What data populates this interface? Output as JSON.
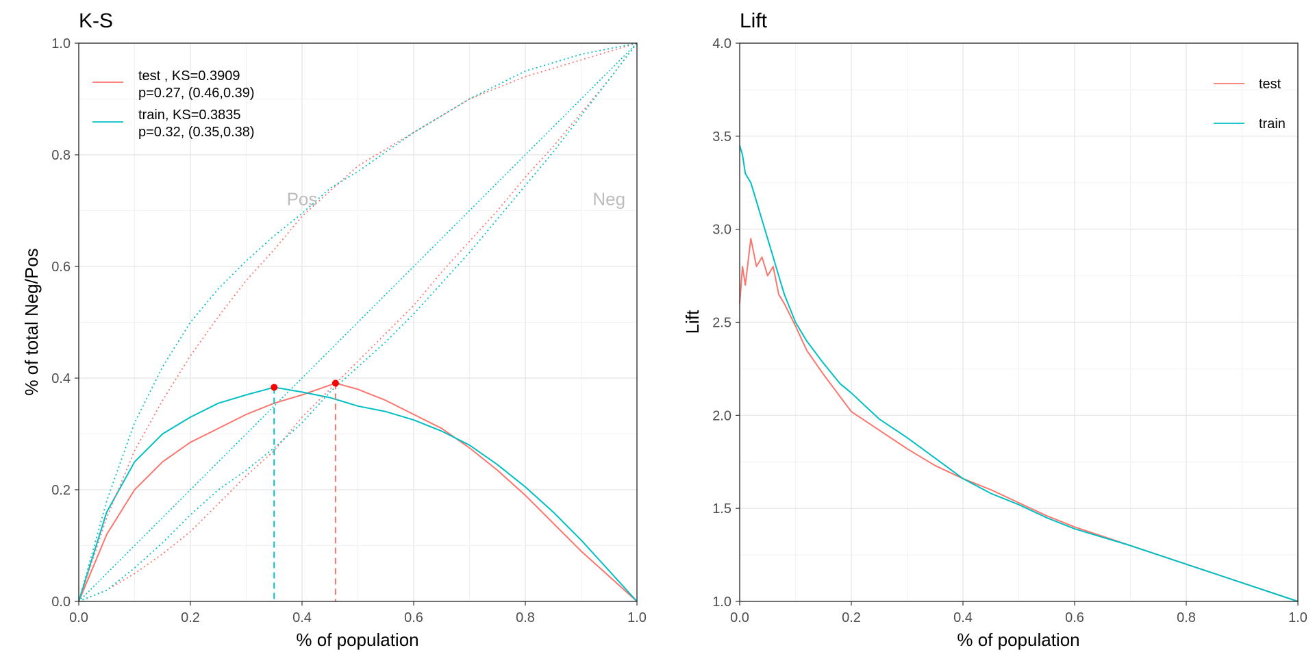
{
  "chart_data": [
    {
      "type": "line",
      "title": "K-S",
      "xlabel": "% of population",
      "ylabel": "% of total Neg/Pos",
      "xlim": [
        0,
        1
      ],
      "ylim": [
        0,
        1
      ],
      "xticks": [
        "0.0",
        "0.2",
        "0.4",
        "0.6",
        "0.8",
        "1.0"
      ],
      "yticks": [
        "0.0",
        "0.2",
        "0.4",
        "0.6",
        "0.8",
        "1.0"
      ],
      "grid": true,
      "legend_position": "top-left",
      "legend": [
        {
          "series": "test",
          "line1": "test , KS=0.3909",
          "line2": "p=0.27, (0.46,0.39)",
          "color": "#F8766D"
        },
        {
          "series": "train",
          "line1": "train, KS=0.3835",
          "line2": "p=0.32, (0.35,0.38)",
          "color": "#00BFC4"
        }
      ],
      "annotations": [
        {
          "text": "Pos",
          "x": 0.4,
          "y": 0.71
        },
        {
          "text": "Neg",
          "x": 0.95,
          "y": 0.71
        }
      ],
      "series": [
        {
          "name": "test",
          "kind": "ks",
          "color": "#F8766D",
          "x": [
            0,
            0.05,
            0.1,
            0.15,
            0.2,
            0.25,
            0.3,
            0.35,
            0.4,
            0.46,
            0.5,
            0.55,
            0.6,
            0.65,
            0.7,
            0.75,
            0.8,
            0.85,
            0.9,
            0.95,
            1.0
          ],
          "y": [
            0,
            0.12,
            0.2,
            0.25,
            0.285,
            0.31,
            0.335,
            0.355,
            0.37,
            0.3909,
            0.38,
            0.36,
            0.335,
            0.31,
            0.275,
            0.235,
            0.19,
            0.14,
            0.09,
            0.045,
            0
          ]
        },
        {
          "name": "train",
          "kind": "ks",
          "color": "#00BFC4",
          "x": [
            0,
            0.05,
            0.1,
            0.15,
            0.2,
            0.25,
            0.3,
            0.35,
            0.4,
            0.45,
            0.5,
            0.55,
            0.6,
            0.65,
            0.7,
            0.75,
            0.8,
            0.85,
            0.9,
            0.95,
            1.0
          ],
          "y": [
            0,
            0.16,
            0.25,
            0.3,
            0.33,
            0.355,
            0.37,
            0.3835,
            0.375,
            0.365,
            0.35,
            0.34,
            0.325,
            0.305,
            0.28,
            0.245,
            0.205,
            0.16,
            0.11,
            0.055,
            0
          ]
        },
        {
          "name": "test",
          "kind": "pos",
          "color": "#F8766D",
          "x": [
            0,
            0.05,
            0.1,
            0.15,
            0.2,
            0.25,
            0.3,
            0.35,
            0.4,
            0.45,
            0.5,
            0.55,
            0.6,
            0.65,
            0.7,
            0.75,
            0.8,
            0.85,
            0.9,
            0.95,
            1.0
          ],
          "y": [
            0,
            0.15,
            0.27,
            0.36,
            0.44,
            0.51,
            0.575,
            0.63,
            0.69,
            0.735,
            0.78,
            0.81,
            0.84,
            0.87,
            0.9,
            0.92,
            0.94,
            0.955,
            0.97,
            0.985,
            1.0
          ]
        },
        {
          "name": "train",
          "kind": "pos",
          "color": "#00BFC4",
          "x": [
            0,
            0.05,
            0.1,
            0.15,
            0.2,
            0.25,
            0.3,
            0.35,
            0.4,
            0.45,
            0.5,
            0.55,
            0.6,
            0.65,
            0.7,
            0.75,
            0.8,
            0.85,
            0.9,
            0.95,
            1.0
          ],
          "y": [
            0,
            0.18,
            0.32,
            0.42,
            0.5,
            0.56,
            0.61,
            0.655,
            0.695,
            0.74,
            0.77,
            0.805,
            0.84,
            0.87,
            0.9,
            0.925,
            0.95,
            0.965,
            0.98,
            0.99,
            1.0
          ]
        },
        {
          "name": "test",
          "kind": "neg",
          "color": "#F8766D",
          "x": [
            0,
            0.05,
            0.1,
            0.15,
            0.2,
            0.25,
            0.3,
            0.35,
            0.4,
            0.46,
            0.5,
            0.55,
            0.6,
            0.65,
            0.7,
            0.75,
            0.8,
            0.85,
            0.9,
            0.95,
            1.0
          ],
          "y": [
            0,
            0.02,
            0.05,
            0.085,
            0.125,
            0.175,
            0.225,
            0.27,
            0.33,
            0.39,
            0.43,
            0.48,
            0.53,
            0.59,
            0.645,
            0.7,
            0.76,
            0.815,
            0.875,
            0.935,
            1.0
          ]
        },
        {
          "name": "train",
          "kind": "neg",
          "color": "#00BFC4",
          "x": [
            0,
            0.05,
            0.1,
            0.15,
            0.2,
            0.25,
            0.3,
            0.35,
            0.4,
            0.45,
            0.5,
            0.55,
            0.6,
            0.65,
            0.7,
            0.75,
            0.8,
            0.85,
            0.9,
            0.95,
            1.0
          ],
          "y": [
            0,
            0.02,
            0.06,
            0.105,
            0.155,
            0.2,
            0.235,
            0.275,
            0.32,
            0.375,
            0.42,
            0.465,
            0.515,
            0.57,
            0.625,
            0.685,
            0.745,
            0.805,
            0.87,
            0.935,
            1.0
          ]
        }
      ],
      "ks_points": [
        {
          "name": "test",
          "x": 0.46,
          "y": 0.3909,
          "color": "#F8766D"
        },
        {
          "name": "train",
          "x": 0.35,
          "y": 0.3835,
          "color": "#00BFC4"
        }
      ]
    },
    {
      "type": "line",
      "title": "Lift",
      "xlabel": "% of population",
      "ylabel": "Lift",
      "xlim": [
        0,
        1
      ],
      "ylim": [
        1,
        4
      ],
      "xticks": [
        "0.0",
        "0.2",
        "0.4",
        "0.6",
        "0.8",
        "1.0"
      ],
      "yticks": [
        "1.0",
        "1.5",
        "2.0",
        "2.5",
        "3.0",
        "3.5",
        "4.0"
      ],
      "grid": true,
      "legend_position": "top-right",
      "legend": [
        {
          "series": "test",
          "label": "test",
          "color": "#F8766D"
        },
        {
          "series": "train",
          "label": "train",
          "color": "#00BFC4"
        }
      ],
      "series": [
        {
          "name": "test",
          "color": "#F8766D",
          "x": [
            0,
            0.005,
            0.01,
            0.02,
            0.03,
            0.04,
            0.05,
            0.06,
            0.07,
            0.08,
            0.1,
            0.12,
            0.15,
            0.18,
            0.2,
            0.25,
            0.3,
            0.35,
            0.4,
            0.45,
            0.5,
            0.55,
            0.6,
            0.7,
            0.8,
            0.9,
            1.0
          ],
          "y": [
            2.6,
            2.8,
            2.7,
            2.95,
            2.8,
            2.85,
            2.75,
            2.8,
            2.65,
            2.6,
            2.48,
            2.35,
            2.22,
            2.1,
            2.02,
            1.92,
            1.82,
            1.73,
            1.66,
            1.6,
            1.53,
            1.46,
            1.4,
            1.3,
            1.2,
            1.1,
            1.0
          ]
        },
        {
          "name": "train",
          "color": "#00BFC4",
          "x": [
            0,
            0.005,
            0.01,
            0.02,
            0.03,
            0.04,
            0.05,
            0.06,
            0.07,
            0.08,
            0.1,
            0.12,
            0.15,
            0.18,
            0.2,
            0.25,
            0.3,
            0.35,
            0.4,
            0.45,
            0.5,
            0.55,
            0.6,
            0.7,
            0.8,
            0.9,
            1.0
          ],
          "y": [
            3.45,
            3.4,
            3.3,
            3.25,
            3.15,
            3.05,
            2.95,
            2.85,
            2.75,
            2.65,
            2.5,
            2.4,
            2.28,
            2.17,
            2.12,
            1.98,
            1.88,
            1.77,
            1.66,
            1.58,
            1.52,
            1.45,
            1.39,
            1.3,
            1.2,
            1.1,
            1.0
          ]
        }
      ]
    }
  ]
}
